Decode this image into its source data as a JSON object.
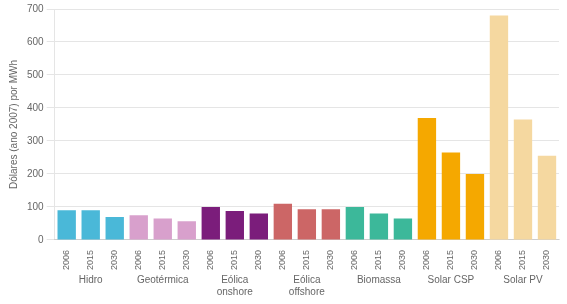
{
  "chart_data": {
    "type": "bar",
    "ylabel": "Dólares (ano 2007) por MWh",
    "categories": [
      "2006",
      "2015",
      "2030",
      "2006",
      "2015",
      "2030",
      "2006",
      "2015",
      "2030",
      "2006",
      "2015",
      "2030",
      "2006",
      "2015",
      "2030",
      "2006",
      "2015",
      "2030",
      "2006",
      "2015",
      "2030"
    ],
    "values": [
      90,
      90,
      70,
      75,
      65,
      57,
      100,
      88,
      80,
      110,
      93,
      93,
      100,
      80,
      65,
      370,
      265,
      200,
      680,
      365,
      255
    ],
    "colors": [
      "#4ab8d8",
      "#4ab8d8",
      "#4ab8d8",
      "#d8a0cc",
      "#d8a0cc",
      "#d8a0cc",
      "#7b1d7b",
      "#7b1d7b",
      "#7b1d7b",
      "#cc6666",
      "#cc6666",
      "#cc6666",
      "#3cb89a",
      "#3cb89a",
      "#3cb89a",
      "#f5a800",
      "#f5a800",
      "#f5a800",
      "#f5d8a0",
      "#f5d8a0",
      "#f5d8a0"
    ],
    "annotations": [
      "Hidro",
      "Geotérmica",
      [
        "Eólica",
        "onshore"
      ],
      [
        "Eólica",
        "offshore"
      ],
      "Biomassa",
      "Solar CSP",
      "Solar PV"
    ],
    "ylim": [
      0,
      700
    ],
    "yticks": [
      0,
      100,
      200,
      300,
      400,
      500,
      600,
      700
    ],
    "grid": true
  }
}
